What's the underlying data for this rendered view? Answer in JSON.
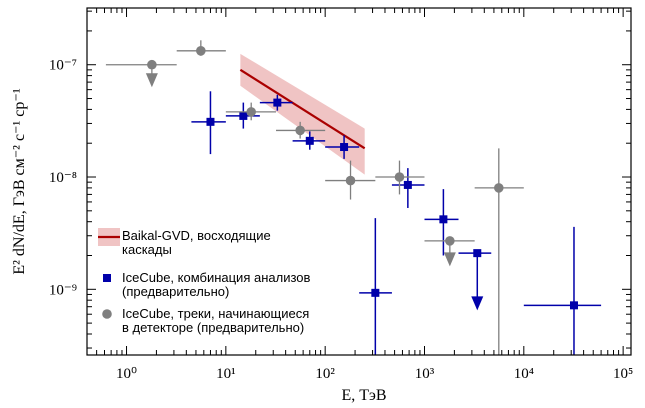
{
  "chart_data": {
    "type": "scatter",
    "title": "",
    "xlabel": "E, ТэВ",
    "ylabel": "E² dN/dE, ГэВ см⁻² с⁻¹ ср⁻¹",
    "x_scale": "log",
    "y_scale": "log",
    "xlim": [
      0.4,
      120000
    ],
    "ylim": [
      2.6e-10,
      3.2e-07
    ],
    "x_ticks": [
      {
        "value": 1,
        "label": "10⁰"
      },
      {
        "value": 10,
        "label": "10¹"
      },
      {
        "value": 100,
        "label": "10²"
      },
      {
        "value": 1000,
        "label": "10³"
      },
      {
        "value": 10000,
        "label": "10⁴"
      },
      {
        "value": 100000,
        "label": "10⁵"
      }
    ],
    "y_ticks": [
      {
        "value": 1e-09,
        "label": "10⁻⁹"
      },
      {
        "value": 1e-08,
        "label": "10⁻⁸"
      },
      {
        "value": 1e-07,
        "label": "10⁻⁷"
      }
    ],
    "grid": false,
    "legend_position": "bottom-left",
    "colors": {
      "baikal_line": "#aa0000",
      "baikal_band": "#f0c4c4",
      "icecube_cascade": "#0000aa",
      "icecube_tracks": "#7f7f7f"
    },
    "series": [
      {
        "name": "Baikal-GVD, восходящие каскады",
        "kind": "power-law-band",
        "line": [
          {
            "x": 14,
            "y": 9e-08
          },
          {
            "x": 250,
            "y": 1.8e-08
          }
        ],
        "band_upper": [
          {
            "x": 14,
            "y": 1.25e-07
          },
          {
            "x": 250,
            "y": 2.7e-08
          }
        ],
        "band_lower": [
          {
            "x": 14,
            "y": 6.5e-08
          },
          {
            "x": 250,
            "y": 1.05e-08
          }
        ]
      },
      {
        "name": "IceCube, комбинация анализов (предварительно)",
        "kind": "points",
        "marker": "square",
        "points": [
          {
            "x": 7,
            "y": 3.1e-08,
            "xlo": 4.5,
            "xhi": 10,
            "ylo": 1.6e-08,
            "yhi": 5.8e-08,
            "upper_limit": false
          },
          {
            "x": 15,
            "y": 3.5e-08,
            "xlo": 10,
            "xhi": 22,
            "ylo": 2.7e-08,
            "yhi": 4.6e-08,
            "upper_limit": false
          },
          {
            "x": 33,
            "y": 4.6e-08,
            "xlo": 22,
            "xhi": 47,
            "ylo": 3.9e-08,
            "yhi": 5.4e-08,
            "upper_limit": false
          },
          {
            "x": 70,
            "y": 2.1e-08,
            "xlo": 47,
            "xhi": 100,
            "ylo": 1.75e-08,
            "yhi": 2.55e-08,
            "upper_limit": false
          },
          {
            "x": 155,
            "y": 1.85e-08,
            "xlo": 100,
            "xhi": 220,
            "ylo": 1.45e-08,
            "yhi": 2.35e-08,
            "upper_limit": false
          },
          {
            "x": 680,
            "y": 8.5e-09,
            "xlo": 470,
            "xhi": 1000,
            "ylo": 5.3e-09,
            "yhi": 1.2e-08,
            "upper_limit": false
          },
          {
            "x": 1550,
            "y": 4.2e-09,
            "xlo": 1000,
            "xhi": 2200,
            "ylo": 2e-09,
            "yhi": 7.8e-09,
            "upper_limit": false
          },
          {
            "x": 320,
            "y": 9.3e-10,
            "xlo": 220,
            "xhi": 470,
            "ylo": 2.6e-10,
            "yhi": 4.3e-09,
            "upper_limit": false
          },
          {
            "x": 3400,
            "y": 2.1e-09,
            "xlo": 2200,
            "xhi": 4700,
            "ylo": 6.5e-10,
            "yhi": 2.1e-09,
            "upper_limit": true
          },
          {
            "x": 32000,
            "y": 7.2e-10,
            "xlo": 10000,
            "xhi": 60000,
            "ylo": 2.6e-10,
            "yhi": 3.6e-09,
            "upper_limit": false
          }
        ]
      },
      {
        "name": "IceCube, треки, начинающиеся в детекторе (предварительно)",
        "kind": "points",
        "marker": "circle",
        "points": [
          {
            "x": 1.8,
            "y": 1e-07,
            "xlo": 0.62,
            "xhi": 3.2,
            "ylo": 6.3e-08,
            "yhi": 1e-07,
            "upper_limit": true
          },
          {
            "x": 5.6,
            "y": 1.33e-07,
            "xlo": 3.2,
            "xhi": 10,
            "ylo": 1.2e-07,
            "yhi": 1.65e-07,
            "upper_limit": false
          },
          {
            "x": 18,
            "y": 3.8e-08,
            "xlo": 10,
            "xhi": 32,
            "ylo": 3.2e-08,
            "yhi": 4.6e-08,
            "upper_limit": false
          },
          {
            "x": 56,
            "y": 2.6e-08,
            "xlo": 32,
            "xhi": 100,
            "ylo": 2.2e-08,
            "yhi": 3.1e-08,
            "upper_limit": false
          },
          {
            "x": 180,
            "y": 9.3e-09,
            "xlo": 100,
            "xhi": 320,
            "ylo": 6.3e-09,
            "yhi": 1.4e-08,
            "upper_limit": false
          },
          {
            "x": 560,
            "y": 1e-08,
            "xlo": 320,
            "xhi": 1000,
            "ylo": 7e-09,
            "yhi": 1.4e-08,
            "upper_limit": false
          },
          {
            "x": 1800,
            "y": 2.7e-09,
            "xlo": 1000,
            "xhi": 3200,
            "ylo": 1.6e-09,
            "yhi": 2.7e-09,
            "upper_limit": true
          },
          {
            "x": 5600,
            "y": 8e-09,
            "xlo": 3200,
            "xhi": 10000,
            "ylo": 2.6e-10,
            "yhi": 1.8e-08,
            "upper_limit": false
          }
        ]
      }
    ],
    "legend": [
      {
        "marker": "band-line",
        "lines": [
          "Baikal-GVD, восходящие",
          "каскады"
        ]
      },
      {
        "marker": "square",
        "lines": [
          "IceCube, комбинация анализов",
          "(предварительно)"
        ]
      },
      {
        "marker": "circle",
        "lines": [
          "IceCube, треки, начинающиеся",
          "в детекторе (предварительно)"
        ]
      }
    ]
  }
}
